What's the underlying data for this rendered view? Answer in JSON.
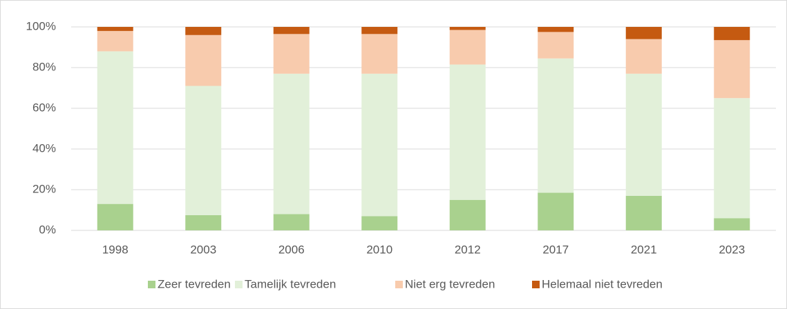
{
  "chart_data": {
    "type": "stacked-bar",
    "categories": [
      "1998",
      "2003",
      "2006",
      "2010",
      "2012",
      "2017",
      "2021",
      "2023"
    ],
    "series": [
      {
        "name": "Zeer tevreden",
        "color": "#a9d18e",
        "values": [
          13,
          7.5,
          8,
          7,
          15,
          18.5,
          17,
          6
        ]
      },
      {
        "name": "Tamelijk tevreden",
        "color": "#e2f0d9",
        "values": [
          75,
          63.5,
          69,
          70,
          66.5,
          66,
          60,
          59
        ]
      },
      {
        "name": "Niet erg tevreden",
        "color": "#f8cbad",
        "values": [
          10,
          25,
          19.5,
          19.5,
          17,
          13,
          17,
          28.5
        ]
      },
      {
        "name": "Helemaal niet tevreden",
        "color": "#c55a11",
        "values": [
          2,
          4,
          3.5,
          3.5,
          1.5,
          2.5,
          6,
          6.5
        ]
      }
    ],
    "ylim": [
      0,
      100
    ],
    "yticks": [
      {
        "value": 0,
        "label": "0%"
      },
      {
        "value": 20,
        "label": "20%"
      },
      {
        "value": 40,
        "label": "40%"
      },
      {
        "value": 60,
        "label": "60%"
      },
      {
        "value": 80,
        "label": "80%"
      },
      {
        "value": 100,
        "label": "100%"
      }
    ],
    "grid": true,
    "legend": "bottom"
  }
}
